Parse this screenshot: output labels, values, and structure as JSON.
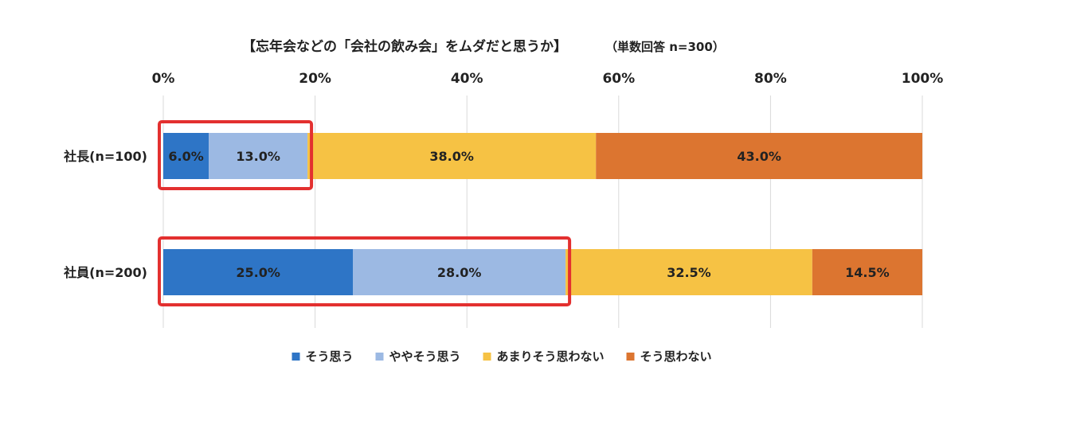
{
  "chart_data": {
    "type": "bar",
    "orientation": "horizontal",
    "stacked": "percent",
    "title": "【忘年会などの「会社の飲み会」をムダだと思うか】",
    "subtitle": "（単数回答 n=300）",
    "categories": [
      "社長(n=100)",
      "社員(n=200)"
    ],
    "series": [
      {
        "name": "そう思う",
        "values": [
          6.0,
          25.0
        ],
        "labels": [
          "6.0%",
          "25.0%"
        ],
        "color": "#2e75c6"
      },
      {
        "name": "ややそう思う",
        "values": [
          13.0,
          28.0
        ],
        "labels": [
          "13.0%",
          "28.0%"
        ],
        "color": "#9cb9e3"
      },
      {
        "name": "あまりそう思わない",
        "values": [
          38.0,
          32.5
        ],
        "labels": [
          "38.0%",
          "32.5%"
        ],
        "color": "#f6c244"
      },
      {
        "name": "そう思わない",
        "values": [
          43.0,
          14.5
        ],
        "labels": [
          "43.0%",
          "14.5%"
        ],
        "color": "#dc7530"
      }
    ],
    "xlim": [
      0,
      100
    ],
    "xticks": [
      "0%",
      "20%",
      "40%",
      "60%",
      "80%",
      "100%"
    ],
    "xtick_values": [
      0,
      20,
      40,
      60,
      80,
      100
    ],
    "axis_position": "top",
    "grid": true,
    "legend": "bottom",
    "highlight": {
      "color": "#e3302f",
      "series": [
        "そう思う",
        "ややそう思う"
      ]
    }
  }
}
